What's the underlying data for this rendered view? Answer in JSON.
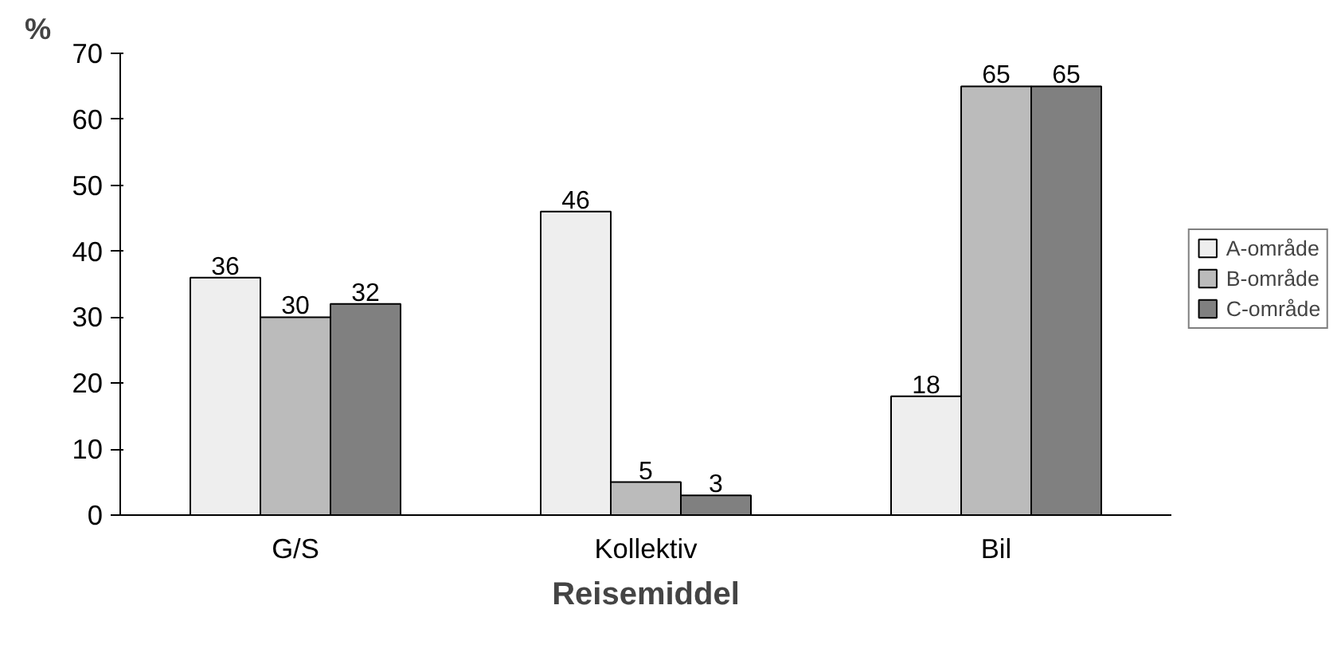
{
  "chart_data": {
    "type": "bar",
    "xlabel": "Reisemiddel",
    "ylabel": "%",
    "categories": [
      "G/S",
      "Kollektiv",
      "Bil"
    ],
    "series": [
      {
        "name": "A-område",
        "color": "#eeeeee",
        "values": [
          36,
          46,
          18
        ]
      },
      {
        "name": "B-område",
        "color": "#bbbbbb",
        "values": [
          30,
          5,
          65
        ]
      },
      {
        "name": "C-område",
        "color": "#808080",
        "values": [
          32,
          3,
          65
        ]
      }
    ],
    "ylim": [
      0,
      70
    ],
    "yticks": [
      0,
      10,
      20,
      30,
      40,
      50,
      60,
      70
    ],
    "data_labels": true,
    "legend": "right",
    "grid": false
  }
}
